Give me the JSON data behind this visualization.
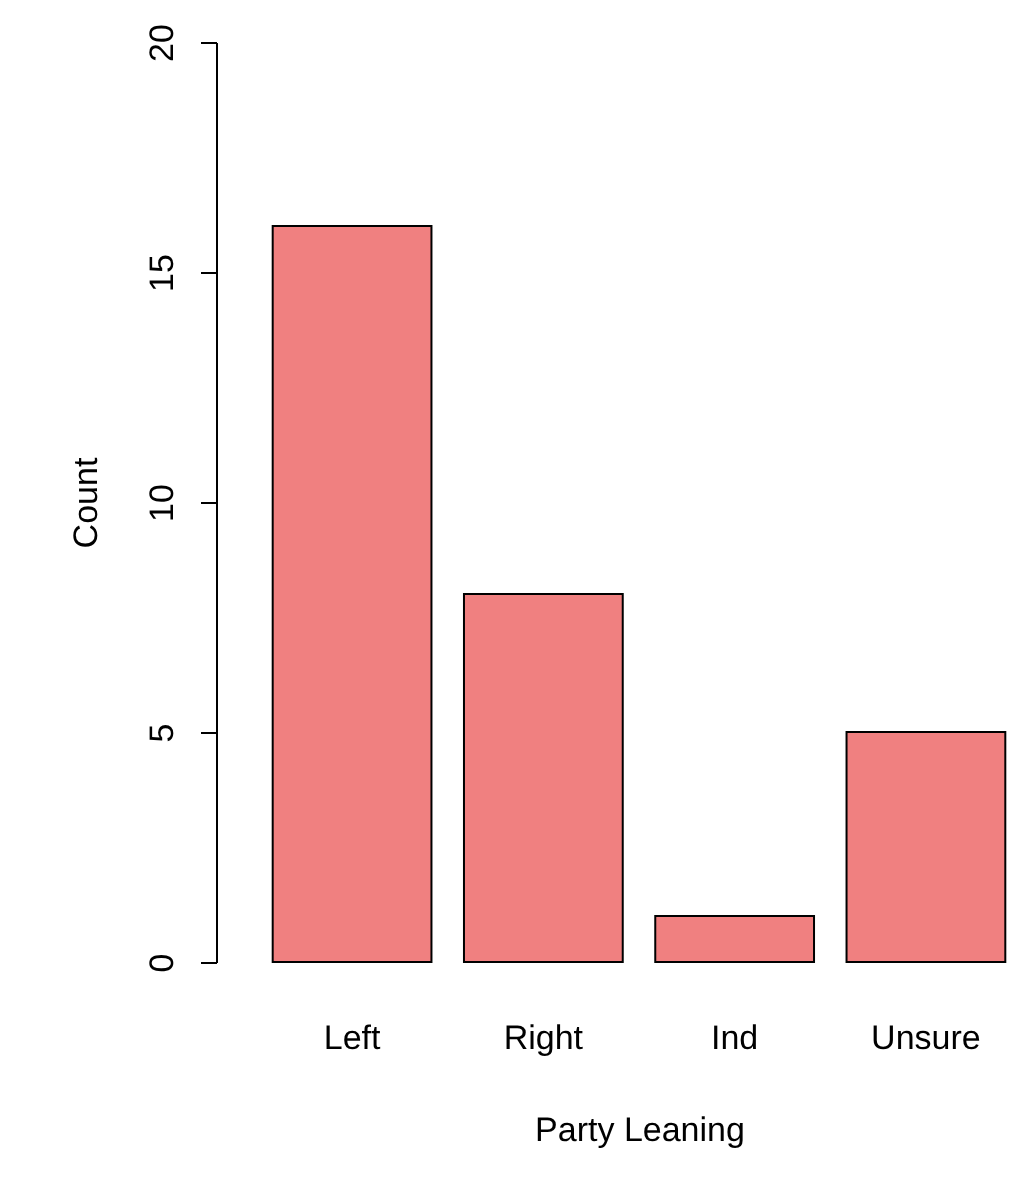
{
  "chart_data": {
    "type": "bar",
    "xlabel": "Party Leaning",
    "ylabel": "Count",
    "categories": [
      "Left",
      "Right",
      "Ind",
      "Unsure"
    ],
    "values": [
      16,
      8,
      1,
      5
    ],
    "color": "#f08080",
    "ylim": [
      0,
      20
    ],
    "yticks": [
      0,
      5,
      10,
      15,
      20
    ],
    "grid": false
  }
}
